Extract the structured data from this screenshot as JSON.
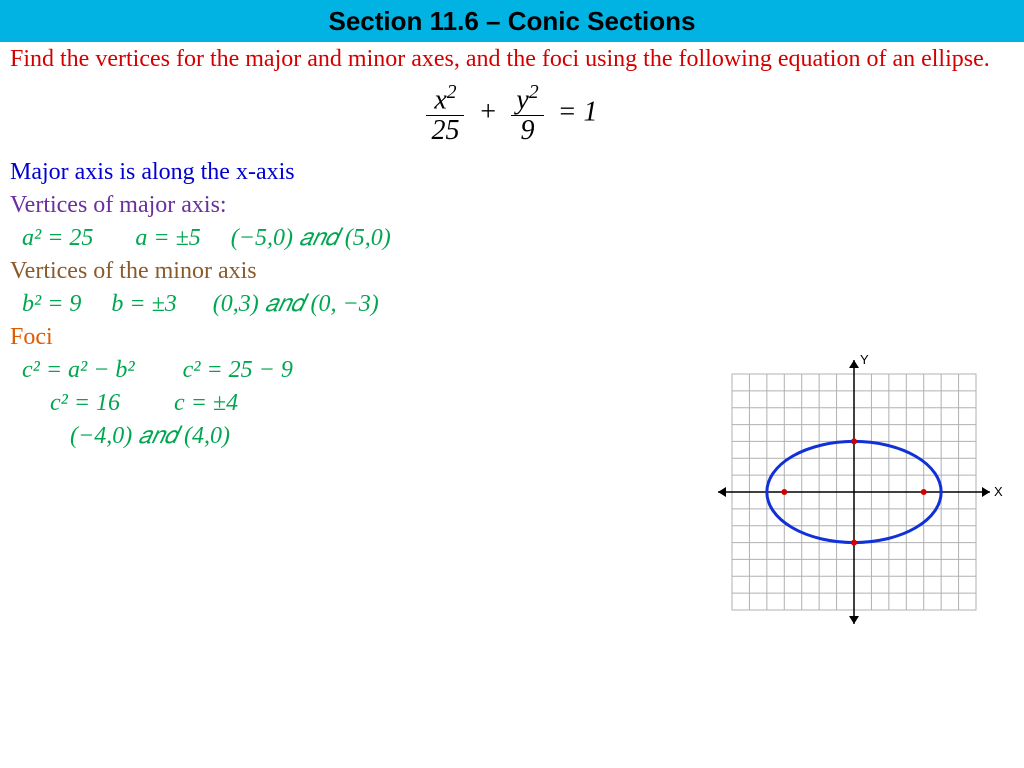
{
  "header": {
    "title": "Section 11.6 – Conic Sections",
    "bg_color": "#00b3e3",
    "text_color": "#000000",
    "font_size": 26
  },
  "problem": {
    "text": "Find the vertices for the major and minor axes, and the foci using the following equation of an ellipse.",
    "color": "#d40000",
    "font_size": 24
  },
  "equation": {
    "color": "#000000",
    "font_size": 28,
    "x_num": "x",
    "x_den": "25",
    "y_num": "y",
    "y_den": "9",
    "rhs": "= 1"
  },
  "major_axis_note": {
    "text": "Major axis is along the x-axis",
    "color": "#0000d4",
    "font_size": 24
  },
  "vertices_major_label": {
    "text": "Vertices of major axis:",
    "color": "#6b2fa0",
    "font_size": 24
  },
  "vertices_major_work": {
    "color": "#00a650",
    "font_size": 24,
    "a2": "a² = 25",
    "a": "a = ±5",
    "points": "(−5,0) 𝑎𝑛𝑑 (5,0)"
  },
  "vertices_minor_label": {
    "text": "Vertices of the minor axis",
    "color": "#8a5a2b",
    "font_size": 24
  },
  "vertices_minor_work": {
    "color": "#00a650",
    "font_size": 24,
    "b2": "b² = 9",
    "b": "b = ±3",
    "points": "(0,3) 𝑎𝑛𝑑 (0, −3)"
  },
  "foci_label": {
    "text": "Foci",
    "color": "#e05a00",
    "font_size": 24
  },
  "foci_work": {
    "color": "#00a650",
    "font_size": 24,
    "line1_left": "c² = a² − b²",
    "line1_right": "c² = 25 − 9",
    "line2_left": "c² = 16",
    "line2_right": "c = ±4",
    "line3": "(−4,0) 𝑎𝑛𝑑 (4,0)"
  },
  "graph": {
    "grid_extent": 7,
    "grid_color": "#b0b0b0",
    "axis_color": "#000000",
    "bg_color": "#ffffff",
    "x_label": "X",
    "y_label": "Y",
    "ellipse": {
      "a": 5,
      "b": 3,
      "stroke": "#1030d8",
      "stroke_width": 3
    },
    "points": [
      {
        "x": 0,
        "y": 3,
        "color": "#d40000"
      },
      {
        "x": 0,
        "y": -3,
        "color": "#d40000"
      },
      {
        "x": -4,
        "y": 0,
        "color": "#d40000"
      },
      {
        "x": 4,
        "y": 0,
        "color": "#d40000"
      }
    ],
    "point_radius": 3
  }
}
